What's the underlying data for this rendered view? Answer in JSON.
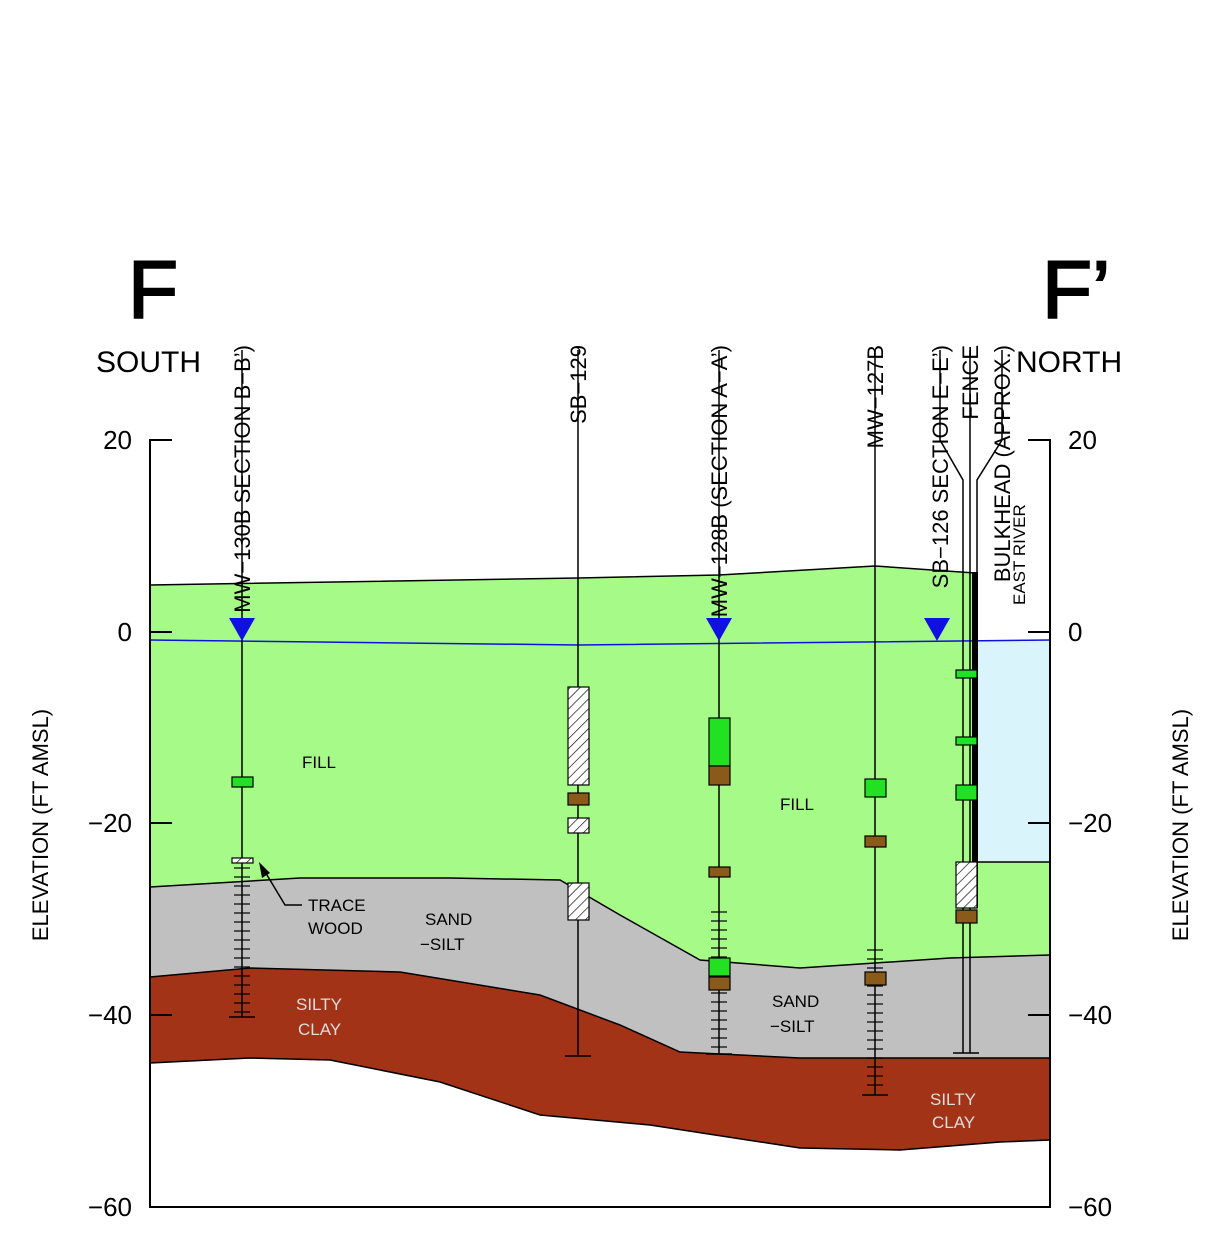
{
  "header": {
    "left_letter": "F",
    "right_letter": "F’",
    "left_direction": "SOUTH",
    "right_direction": "NORTH"
  },
  "axes": {
    "left_label": "ELEVATION (FT AMSL)",
    "right_label": "ELEVATION (FT AMSL)",
    "ticks": [
      "20",
      "0",
      "−20",
      "−40",
      "−60"
    ]
  },
  "borings": [
    "MW−130B SECTION B−B’)",
    "SB−129",
    "MW−128B (SECTION A−A’)",
    "MW−127B",
    "SB−126 SECTION E−E’)",
    "FENCE",
    "BULKHEAD (APPROX.)"
  ],
  "labels": {
    "fill_left": "FILL",
    "fill_right": "FILL",
    "sand_left": [
      "SAND",
      "−SILT"
    ],
    "sand_right": [
      "SAND",
      "−SILT"
    ],
    "clay_left": [
      "SILTY",
      "CLAY"
    ],
    "clay_right": [
      "SILTY",
      "CLAY"
    ],
    "trace_wood": [
      "TRACE",
      "WOOD"
    ],
    "east_river": "EAST RIVER"
  }
}
